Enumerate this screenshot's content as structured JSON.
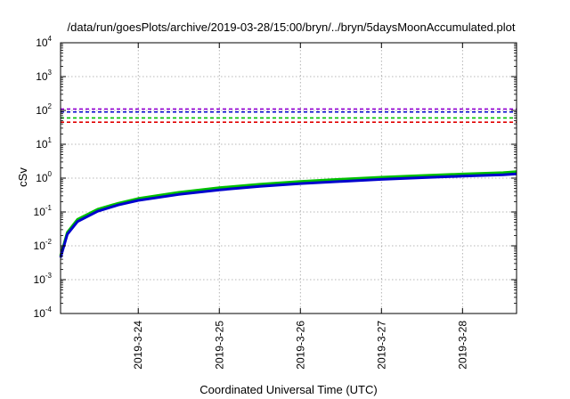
{
  "chart_data": {
    "type": "line",
    "title": "/data/run/goesPlots/archive/2019-03-28/15:00/bryn/../bryn/5daysMoonAccumulated.plot",
    "xlabel": "Coordinated Universal Time (UTC)",
    "ylabel": "cSv",
    "y_scale": "log",
    "ylim": [
      0.0001,
      10000
    ],
    "y_ticks": [
      {
        "base": "10",
        "exp": "-4",
        "value": 0.0001
      },
      {
        "base": "10",
        "exp": "-3",
        "value": 0.001
      },
      {
        "base": "10",
        "exp": "-2",
        "value": 0.01
      },
      {
        "base": "10",
        "exp": "-1",
        "value": 0.1
      },
      {
        "base": "10",
        "exp": "0",
        "value": 1
      },
      {
        "base": "10",
        "exp": "1",
        "value": 10
      },
      {
        "base": "10",
        "exp": "2",
        "value": 100
      },
      {
        "base": "10",
        "exp": "3",
        "value": 1000
      },
      {
        "base": "10",
        "exp": "4",
        "value": 10000
      }
    ],
    "xlim": [
      "2019-03-23 01:00",
      "2019-03-28 16:00"
    ],
    "x_ticks": [
      "2019-3-24",
      "2019-3-25",
      "2019-3-26",
      "2019-3-27",
      "2019-3-28"
    ],
    "grid": true,
    "thresholds": [
      {
        "value": 110,
        "color": "#9400d3"
      },
      {
        "value": 90,
        "color": "#0000cd"
      },
      {
        "value": 60,
        "color": "#00c000"
      },
      {
        "value": 45,
        "color": "#e00000"
      }
    ],
    "series": [
      {
        "color": "#00c000",
        "x": [
          "2019-03-23 01:00",
          "2019-03-23 03:00",
          "2019-03-23 06:00",
          "2019-03-23 12:00",
          "2019-03-23 18:00",
          "2019-03-24 00:00",
          "2019-03-24 12:00",
          "2019-03-25 00:00",
          "2019-03-25 12:00",
          "2019-03-26 00:00",
          "2019-03-26 12:00",
          "2019-03-27 00:00",
          "2019-03-27 12:00",
          "2019-03-28 00:00",
          "2019-03-28 12:00",
          "2019-03-28 16:00"
        ],
        "y": [
          0.005,
          0.025,
          0.06,
          0.12,
          0.18,
          0.25,
          0.38,
          0.52,
          0.66,
          0.8,
          0.93,
          1.06,
          1.19,
          1.32,
          1.45,
          1.55
        ]
      },
      {
        "color": "#0000cd",
        "x": [
          "2019-03-23 01:00",
          "2019-03-23 03:00",
          "2019-03-23 06:00",
          "2019-03-23 12:00",
          "2019-03-23 18:00",
          "2019-03-24 00:00",
          "2019-03-24 12:00",
          "2019-03-25 00:00",
          "2019-03-25 12:00",
          "2019-03-26 00:00",
          "2019-03-26 12:00",
          "2019-03-27 00:00",
          "2019-03-27 12:00",
          "2019-03-28 00:00",
          "2019-03-28 12:00",
          "2019-03-28 16:00"
        ],
        "y": [
          0.0045,
          0.022,
          0.052,
          0.105,
          0.16,
          0.22,
          0.33,
          0.45,
          0.57,
          0.69,
          0.8,
          0.92,
          1.03,
          1.14,
          1.25,
          1.33
        ]
      }
    ]
  }
}
